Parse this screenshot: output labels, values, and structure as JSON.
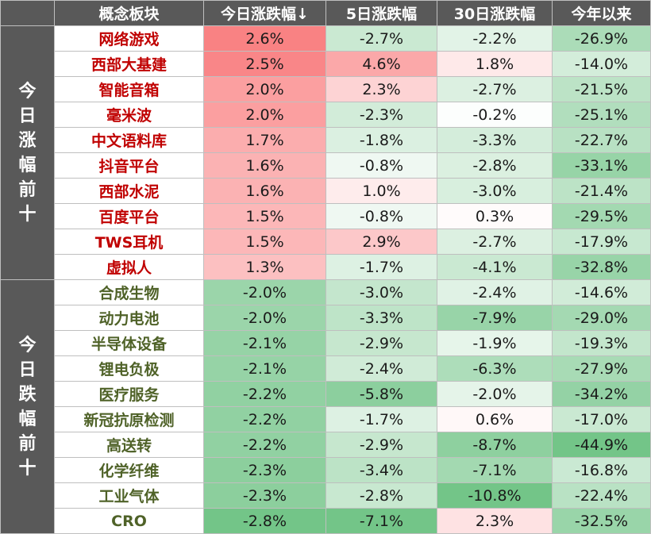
{
  "chart_data": {
    "type": "table",
    "columns": [
      "",
      "概念板块",
      "今日涨跌幅↓",
      "5日涨跌幅",
      "30日涨跌幅",
      "今年以来"
    ],
    "units": "%",
    "groups": [
      {
        "label": "今日涨幅前十",
        "name_color": "#c00000",
        "rows": [
          {
            "name": "网络游戏",
            "today": 2.6,
            "d5": -2.7,
            "d30": -2.2,
            "ytd": -26.9
          },
          {
            "name": "西部大基建",
            "today": 2.5,
            "d5": 4.6,
            "d30": 1.8,
            "ytd": -14.0
          },
          {
            "name": "智能音箱",
            "today": 2.0,
            "d5": 2.3,
            "d30": -2.7,
            "ytd": -21.5
          },
          {
            "name": "毫米波",
            "today": 2.0,
            "d5": -2.3,
            "d30": -0.2,
            "ytd": -25.1
          },
          {
            "name": "中文语料库",
            "today": 1.7,
            "d5": -1.8,
            "d30": -3.3,
            "ytd": -22.7
          },
          {
            "name": "抖音平台",
            "today": 1.6,
            "d5": -0.8,
            "d30": -2.8,
            "ytd": -33.1
          },
          {
            "name": "西部水泥",
            "today": 1.6,
            "d5": 1.0,
            "d30": -3.0,
            "ytd": -21.4
          },
          {
            "name": "百度平台",
            "today": 1.5,
            "d5": -0.8,
            "d30": 0.3,
            "ytd": -29.5
          },
          {
            "name": "TWS耳机",
            "today": 1.5,
            "d5": 2.9,
            "d30": -2.7,
            "ytd": -17.9
          },
          {
            "name": "虚拟人",
            "today": 1.3,
            "d5": -1.7,
            "d30": -4.1,
            "ytd": -32.8
          }
        ]
      },
      {
        "label": "今日跌幅前十",
        "name_color": "#4f6228",
        "rows": [
          {
            "name": "合成生物",
            "today": -2.0,
            "d5": -3.0,
            "d30": -2.4,
            "ytd": -14.6
          },
          {
            "name": "动力电池",
            "today": -2.0,
            "d5": -3.3,
            "d30": -7.9,
            "ytd": -29.0
          },
          {
            "name": "半导体设备",
            "today": -2.1,
            "d5": -2.9,
            "d30": -1.9,
            "ytd": -19.3
          },
          {
            "name": "锂电负极",
            "today": -2.1,
            "d5": -2.4,
            "d30": -6.3,
            "ytd": -27.9
          },
          {
            "name": "医疗服务",
            "today": -2.2,
            "d5": -5.8,
            "d30": -2.0,
            "ytd": -34.2
          },
          {
            "name": "新冠抗原检测",
            "today": -2.2,
            "d5": -1.7,
            "d30": 0.6,
            "ytd": -17.0
          },
          {
            "name": "高送转",
            "today": -2.2,
            "d5": -2.9,
            "d30": -8.7,
            "ytd": -44.9
          },
          {
            "name": "化学纤维",
            "today": -2.3,
            "d5": -3.4,
            "d30": -7.1,
            "ytd": -16.8
          },
          {
            "name": "工业气体",
            "today": -2.3,
            "d5": -2.8,
            "d30": -10.8,
            "ytd": -22.4
          },
          {
            "name": "CRO",
            "today": -2.8,
            "d5": -7.1,
            "d30": 2.3,
            "ytd": -32.5
          }
        ]
      }
    ],
    "color_scale": {
      "positive": "#f8696b",
      "negative": "#63be7b",
      "neutral": "#ffffff"
    }
  }
}
